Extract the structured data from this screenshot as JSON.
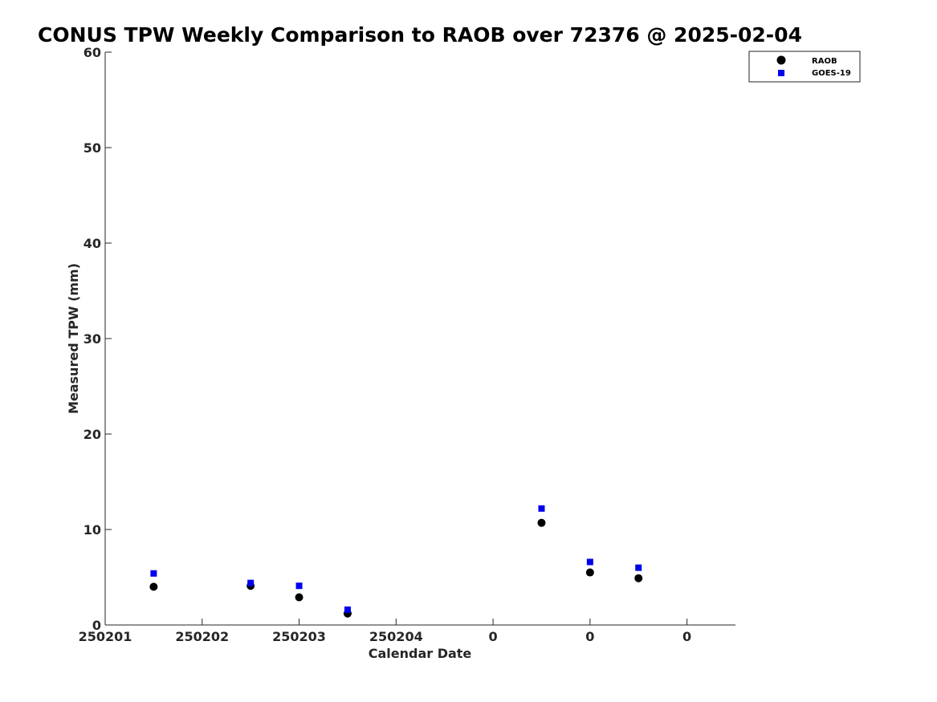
{
  "chart_data": {
    "type": "scatter",
    "title": "CONUS TPW Weekly Comparison to RAOB over 72376 @ 2025-02-04",
    "xlabel": "Calendar Date",
    "ylabel": "Measured TPW (mm)",
    "ylim": [
      0,
      60
    ],
    "xlim": [
      0,
      6.5
    ],
    "yticks": [
      0,
      10,
      20,
      30,
      40,
      50,
      60
    ],
    "xticks": [
      {
        "pos": 0,
        "label": "250201"
      },
      {
        "pos": 1,
        "label": "250202"
      },
      {
        "pos": 2,
        "label": "250203"
      },
      {
        "pos": 3,
        "label": "250204"
      },
      {
        "pos": 4,
        "label": "0"
      },
      {
        "pos": 5,
        "label": "0"
      },
      {
        "pos": 6,
        "label": "0"
      }
    ],
    "legend_position": "top-right",
    "series": [
      {
        "name": "RAOB",
        "marker": "circle",
        "color": "#000000",
        "points": [
          {
            "x": 0.5,
            "y": 4.0
          },
          {
            "x": 1.5,
            "y": 4.1
          },
          {
            "x": 2.0,
            "y": 2.9
          },
          {
            "x": 2.5,
            "y": 1.2
          },
          {
            "x": 4.5,
            "y": 10.7
          },
          {
            "x": 5.0,
            "y": 5.5
          },
          {
            "x": 5.5,
            "y": 4.9
          }
        ]
      },
      {
        "name": "GOES-19",
        "marker": "square",
        "color": "#0000ee",
        "points": [
          {
            "x": 0.5,
            "y": 5.4
          },
          {
            "x": 1.5,
            "y": 4.4
          },
          {
            "x": 2.0,
            "y": 4.1
          },
          {
            "x": 2.5,
            "y": 1.6
          },
          {
            "x": 4.5,
            "y": 12.2
          },
          {
            "x": 5.0,
            "y": 6.6
          },
          {
            "x": 5.5,
            "y": 6.0
          }
        ]
      }
    ]
  }
}
